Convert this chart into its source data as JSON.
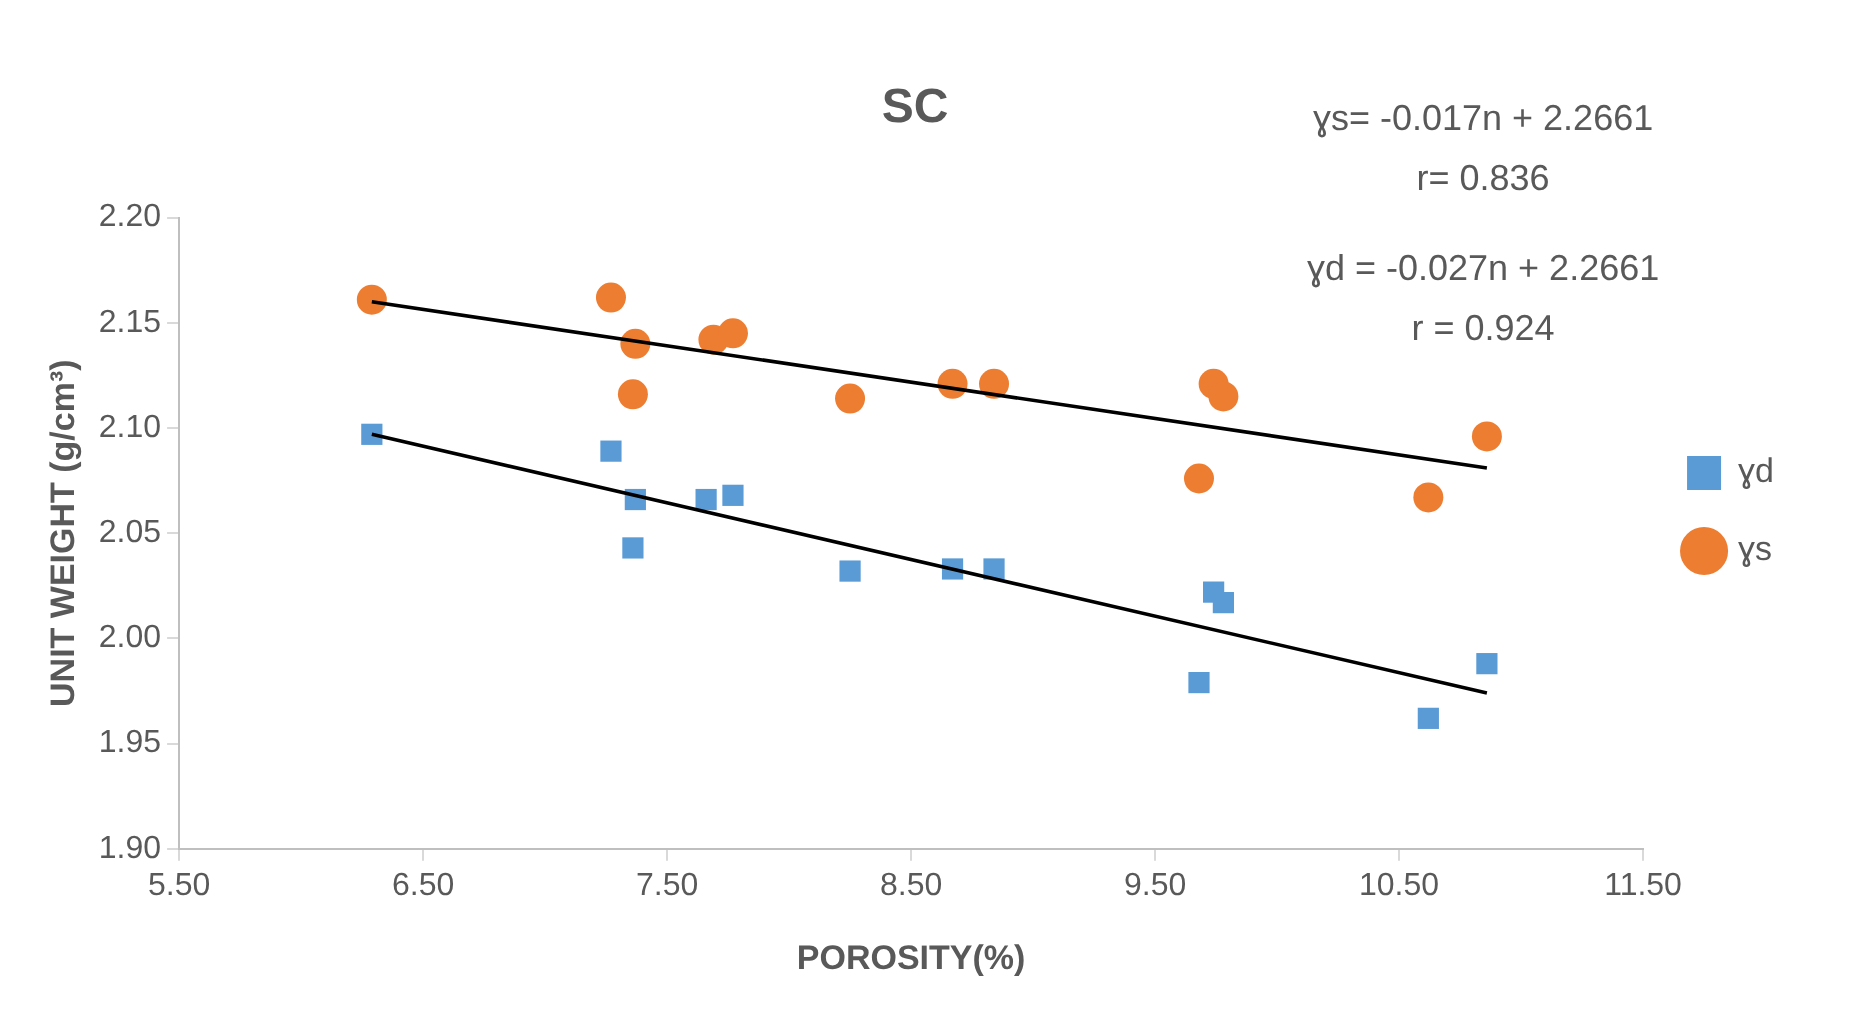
{
  "chart_data": {
    "type": "scatter",
    "title": "SC",
    "xlabel": "POROSITY(%)",
    "ylabel": "UNIT WEIGHT (g/cm³)",
    "xlim": [
      5.5,
      11.5
    ],
    "xticks": [
      {
        "value": 5.5,
        "label": "5.50"
      },
      {
        "value": 6.5,
        "label": "6.50"
      },
      {
        "value": 7.5,
        "label": "7.50"
      },
      {
        "value": 8.5,
        "label": "8.50"
      },
      {
        "value": 9.5,
        "label": "9.50"
      },
      {
        "value": 10.5,
        "label": "10.50"
      },
      {
        "value": 11.5,
        "label": "11.50"
      }
    ],
    "ylim": [
      1.9,
      2.2
    ],
    "yticks": [
      {
        "value": 1.9,
        "label": "1.90"
      },
      {
        "value": 1.95,
        "label": "1.95"
      },
      {
        "value": 2.0,
        "label": "2.00"
      },
      {
        "value": 2.05,
        "label": "2.05"
      },
      {
        "value": 2.1,
        "label": "2.10"
      },
      {
        "value": 2.15,
        "label": "2.15"
      },
      {
        "value": 2.2,
        "label": "2.20"
      }
    ],
    "grid": false,
    "legend": "right",
    "annotations": [
      "ɣs= -0.017n + 2.2661",
      "r= 0.836",
      "ɣd = -0.027n + 2.2661",
      "r = 0.924"
    ],
    "series": [
      {
        "name": "ɣd",
        "color": "#5b9bd5",
        "marker": "square",
        "x": [
          6.29,
          7.27,
          7.37,
          7.36,
          7.66,
          7.77,
          8.25,
          8.67,
          8.84,
          9.74,
          9.78,
          9.68,
          10.62,
          10.86
        ],
        "values": [
          2.097,
          2.089,
          2.066,
          2.043,
          2.066,
          2.068,
          2.032,
          2.033,
          2.033,
          2.022,
          2.017,
          1.979,
          1.962,
          1.988
        ]
      },
      {
        "name": "ɣs",
        "color": "#ed7d31",
        "marker": "circle",
        "x": [
          6.29,
          7.27,
          7.37,
          7.36,
          7.69,
          7.77,
          8.25,
          8.67,
          8.84,
          9.74,
          9.78,
          9.68,
          10.62,
          10.86
        ],
        "values": [
          2.161,
          2.162,
          2.14,
          2.116,
          2.142,
          2.145,
          2.114,
          2.121,
          2.121,
          2.121,
          2.115,
          2.076,
          2.067,
          2.096
        ]
      },
      {
        "type": "line",
        "color": "#000000",
        "marker": "none",
        "x": [
          6.29,
          10.86
        ],
        "values": [
          2.097,
          1.974
        ]
      },
      {
        "type": "line",
        "color": "#000000",
        "marker": "none",
        "x": [
          6.29,
          10.86
        ],
        "values": [
          2.16,
          2.081
        ]
      }
    ]
  }
}
